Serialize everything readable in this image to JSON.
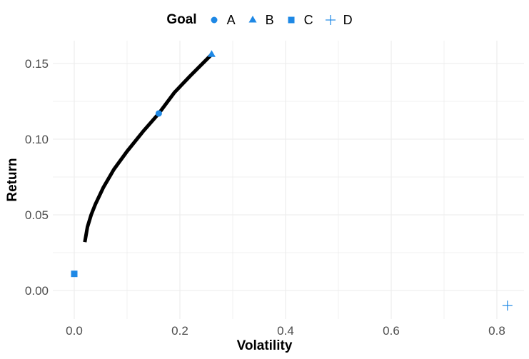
{
  "chart_data": {
    "type": "scatter",
    "title": "",
    "xlabel": "Volatility",
    "ylabel": "Return",
    "xlim": [
      -0.04,
      0.86
    ],
    "ylim": [
      -0.019,
      0.165
    ],
    "x_ticks": [
      0.0,
      0.2,
      0.4,
      0.6,
      0.8
    ],
    "x_tick_labels": [
      "0.0",
      "0.2",
      "0.4",
      "0.6",
      "0.8"
    ],
    "y_ticks": [
      0.0,
      0.05,
      0.1,
      0.15
    ],
    "y_tick_labels": [
      "0.00",
      "0.05",
      "0.10",
      "0.15"
    ],
    "grid": true,
    "legend_position": "top",
    "legend_title": "Goal",
    "series": [
      {
        "name": "A",
        "shape": "circle",
        "color": "#1E88E5",
        "x": [
          0.16
        ],
        "y": [
          0.117
        ]
      },
      {
        "name": "B",
        "shape": "triangle",
        "color": "#1E88E5",
        "x": [
          0.26
        ],
        "y": [
          0.156
        ]
      },
      {
        "name": "C",
        "shape": "square",
        "color": "#1E88E5",
        "x": [
          0.0
        ],
        "y": [
          0.011
        ]
      },
      {
        "name": "D",
        "shape": "plus",
        "color": "#1E88E5",
        "x": [
          0.82
        ],
        "y": [
          -0.01
        ]
      }
    ],
    "frontier_line": {
      "color": "#000000",
      "x": [
        0.02,
        0.025,
        0.032,
        0.04,
        0.055,
        0.075,
        0.1,
        0.13,
        0.16,
        0.19,
        0.22,
        0.26
      ],
      "y": [
        0.032,
        0.042,
        0.05,
        0.057,
        0.068,
        0.08,
        0.092,
        0.105,
        0.117,
        0.131,
        0.142,
        0.156
      ]
    }
  },
  "legend": {
    "title": "Goal",
    "items": [
      {
        "label": "A",
        "shape": "circle"
      },
      {
        "label": "B",
        "shape": "triangle"
      },
      {
        "label": "C",
        "shape": "square"
      },
      {
        "label": "D",
        "shape": "plus"
      }
    ]
  },
  "axes": {
    "x_title": "Volatility",
    "y_title": "Return"
  },
  "colors": {
    "point": "#1E88E5",
    "line": "#000000",
    "grid": "#EBEBEB",
    "tick_text": "#4D4D4D"
  }
}
